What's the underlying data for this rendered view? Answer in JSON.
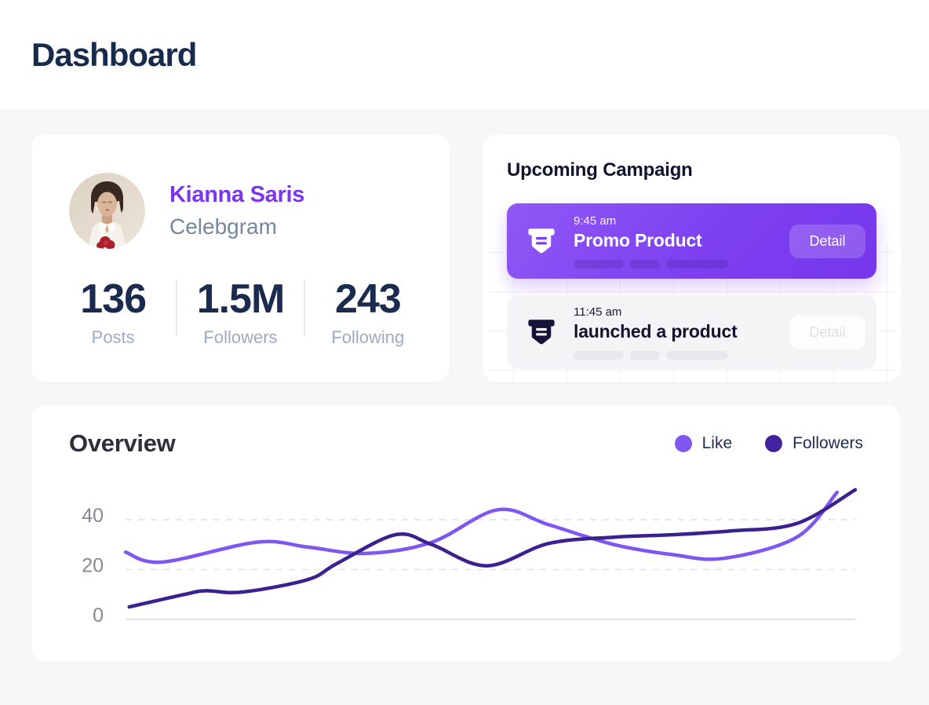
{
  "page": {
    "title": "Dashboard",
    "bg_color": "#f7f7f8",
    "header_bg": "#ffffff",
    "accent_color": "#7c3aed"
  },
  "profile": {
    "name": "Kianna Saris",
    "handle": "Celebgram",
    "name_color": "#7c35ee",
    "stats": [
      {
        "value": "136",
        "label": "Posts"
      },
      {
        "value": "1.5M",
        "label": "Followers"
      },
      {
        "value": "243",
        "label": "Following"
      }
    ]
  },
  "campaign": {
    "title": "Upcoming Campaign",
    "items": [
      {
        "time": "9:45 am",
        "title": "Promo Product",
        "button": "Detail",
        "highlighted": true,
        "bg_gradient": [
          "#9058f5",
          "#7637ec"
        ],
        "icon": "promo-badge-icon"
      },
      {
        "time": "11:45 am",
        "title": "launched a product",
        "button": "Detail",
        "highlighted": false,
        "bg_color": "#f4f4f6",
        "icon": "promo-badge-icon"
      }
    ]
  },
  "overview": {
    "title": "Overview",
    "legend": [
      {
        "label": "Like",
        "color": "#8257f0"
      },
      {
        "label": "Followers",
        "color": "#41239e"
      }
    ]
  },
  "chart_data": {
    "type": "line",
    "title": "Overview",
    "xlabel": "",
    "ylabel": "",
    "yticks": [
      0,
      20,
      40
    ],
    "ylim": [
      0,
      55
    ],
    "grid": "horizontal dashed at 20 and 40, solid baseline at 0",
    "legend_position": "top-right",
    "series": [
      {
        "name": "Like",
        "color": "#7e57f0",
        "points": [
          [
            0,
            27
          ],
          [
            5,
            23
          ],
          [
            18,
            31
          ],
          [
            25,
            29
          ],
          [
            33,
            26.5
          ],
          [
            42,
            31
          ],
          [
            51,
            44
          ],
          [
            58,
            38
          ],
          [
            67,
            30
          ],
          [
            75,
            26
          ],
          [
            82,
            24.5
          ],
          [
            92,
            33
          ],
          [
            97.5,
            51
          ]
        ]
      },
      {
        "name": "Followers",
        "color": "#3b2190",
        "points": [
          [
            0.5,
            5
          ],
          [
            8,
            10
          ],
          [
            11,
            11.5
          ],
          [
            16,
            11
          ],
          [
            25,
            16
          ],
          [
            29,
            22.5
          ],
          [
            37,
            34
          ],
          [
            42,
            30
          ],
          [
            49.5,
            21.5
          ],
          [
            58,
            30.5
          ],
          [
            67,
            33
          ],
          [
            75,
            34
          ],
          [
            83,
            35.5
          ],
          [
            92,
            38.5
          ],
          [
            100,
            52
          ]
        ]
      }
    ]
  }
}
